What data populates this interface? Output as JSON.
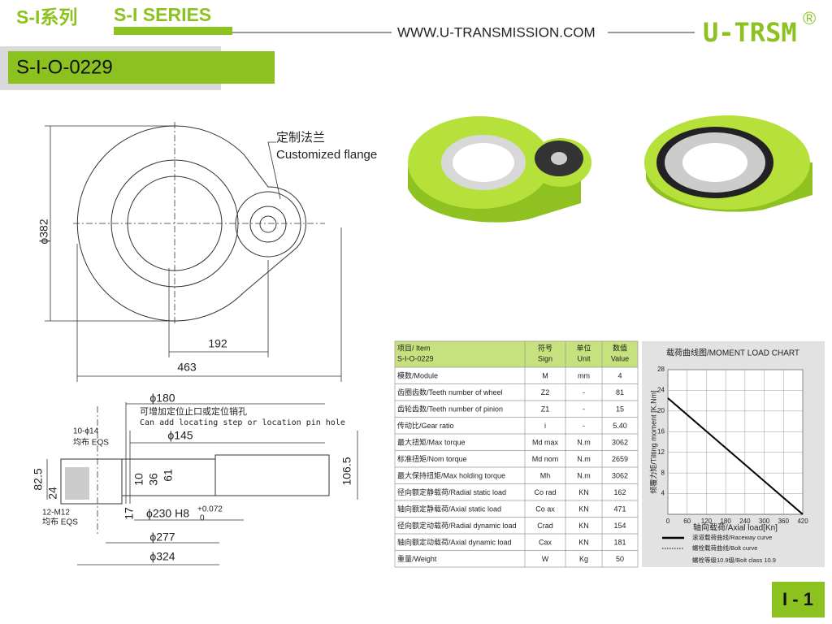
{
  "header": {
    "series_cn": "S-I系列",
    "series_en": "S-I SERIES",
    "website": "WWW.U-TRANSMISSION.COM",
    "brand": "U-TRSM",
    "registered": "®"
  },
  "model": "S-I-O-0229",
  "drawing": {
    "flange_cn": "定制法兰",
    "flange_en": "Customized flange",
    "dia_382": "ϕ382",
    "dim_192": "192",
    "dim_463": "463",
    "dia_180": "ϕ180",
    "note_cn": "可增加定位止口或定位销孔",
    "note_en": "Can add locating step or location pin hole",
    "holes_top": "10-ϕ14",
    "eqs_top": "均布 EQS",
    "dia_145": "ϕ145",
    "dim_82_5": "82.5",
    "dim_24": "24",
    "dim_10": "10",
    "dim_36": "36",
    "dim_61": "61",
    "dim_106_5": "106.5",
    "dim_17": "17",
    "dia_230": "ϕ230 H8",
    "tol_upper": "+0.072",
    "tol_lower": "0",
    "holes_bottom": "12-M12",
    "eqs_bottom": "均布 EQS",
    "dia_277": "ϕ277",
    "dia_324": "ϕ324"
  },
  "table": {
    "header": [
      [
        "项目/ Item",
        "S-I-O-0229"
      ],
      [
        "符号",
        "Sign"
      ],
      [
        "单位",
        "Unit"
      ],
      [
        "数值",
        "Value"
      ]
    ],
    "rows": [
      [
        "模数/Module",
        "M",
        "mm",
        "4"
      ],
      [
        "齿圈齿数/Teeth number of wheel",
        "Z2",
        "-",
        "81"
      ],
      [
        "齿轮齿数/Teeth number of pinion",
        "Z1",
        "-",
        "15"
      ],
      [
        "传动比/Gear ratio",
        "i",
        "-",
        "5.40"
      ],
      [
        "最大扭矩/Max torque",
        "Md max",
        "N.m",
        "3062"
      ],
      [
        "标准扭矩/Nom torque",
        "Md nom",
        "N.m",
        "2659"
      ],
      [
        "最大保持扭矩/Max holding torque",
        "Mh",
        "N.m",
        "3062"
      ],
      [
        "径向额定静载荷/Radial static load",
        "Co rad",
        "KN",
        "162"
      ],
      [
        "轴向额定静载荷/Axial static load",
        "Co ax",
        "KN",
        "471"
      ],
      [
        "径向额定动载荷/Radial dynamic load",
        "Crad",
        "KN",
        "154"
      ],
      [
        "轴向额定动载荷/Axial dynamic load",
        "Cax",
        "KN",
        "181"
      ],
      [
        "重量/Weight",
        "W",
        "Kg",
        "50"
      ]
    ]
  },
  "chart_data": {
    "type": "line",
    "title": "载荷曲线图/MOMENT LOAD CHART",
    "x_label": "轴向载荷/Axial load[Kn]",
    "y_label": "倾覆力矩/Tilting moment [K.Nm]",
    "x": [
      0,
      420
    ],
    "series": [
      {
        "name": "滚道载荷曲线/Raceway curve",
        "color": "#000000",
        "values": [
          22.5,
          0
        ]
      },
      {
        "name": "螺栓载荷曲线/Bolt curve",
        "color": "#000000",
        "values": [
          null,
          null
        ]
      }
    ],
    "note": "螺栓等级10.9级/Bolt class 10.9",
    "xlim": [
      0,
      420
    ],
    "xticks": [
      0,
      60,
      120,
      180,
      240,
      300,
      360,
      420
    ],
    "ylim": [
      0,
      28
    ],
    "yticks": [
      4,
      8,
      12,
      16,
      20,
      24,
      28
    ],
    "grid": true
  },
  "page_number": "I - 1"
}
